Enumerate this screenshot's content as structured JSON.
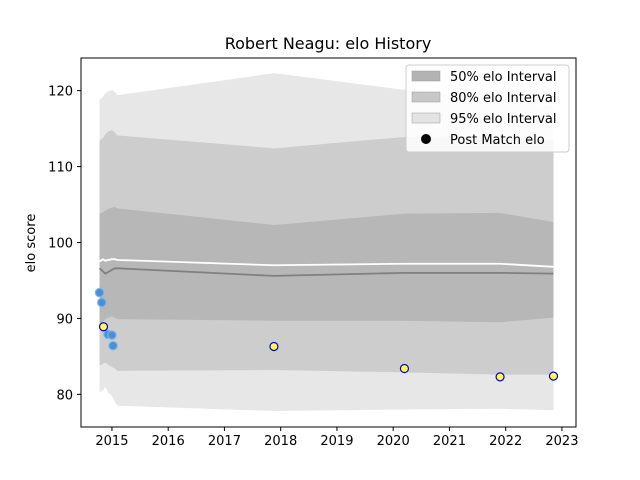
{
  "chart_data": {
    "type": "line",
    "title": "Robert Neagu: elo History",
    "xlabel": "",
    "ylabel": "elo score",
    "xlim": [
      2014.45,
      2023.25
    ],
    "ylim": [
      75.7,
      124.3
    ],
    "xticks": [
      2015,
      2016,
      2017,
      2018,
      2019,
      2020,
      2021,
      2022,
      2023
    ],
    "yticks": [
      80,
      90,
      100,
      110,
      120
    ],
    "grid": false,
    "legend_position": "top-right",
    "legend": [
      {
        "label": "50% elo Interval",
        "color": "#b3b3b3",
        "kind": "band"
      },
      {
        "label": "80% elo Interval",
        "color": "#c8c8c8",
        "kind": "band"
      },
      {
        "label": "95% elo Interval",
        "color": "#e3e3e3",
        "kind": "band"
      },
      {
        "label": "Post Match elo",
        "color": "#000000",
        "kind": "marker"
      }
    ],
    "x": [
      2014.78,
      2014.84,
      2014.88,
      2014.93,
      2015.0,
      2015.05,
      2015.1,
      2017.88,
      2020.2,
      2021.9,
      2022.85
    ],
    "bands": {
      "p95": {
        "lower": [
          80.3,
          80.5,
          81.0,
          80.3,
          79.8,
          79.0,
          78.5,
          77.8,
          78.0,
          78.1,
          77.9
        ],
        "upper": [
          118.8,
          119.2,
          119.6,
          119.9,
          120.1,
          119.8,
          119.4,
          122.3,
          120.1,
          119.0,
          117.9
        ]
      },
      "p80": {
        "lower": [
          83.8,
          84.0,
          84.2,
          83.9,
          83.6,
          83.4,
          83.1,
          83.2,
          82.9,
          82.6,
          82.6
        ],
        "upper": [
          113.4,
          113.8,
          114.2,
          114.6,
          114.8,
          114.5,
          114.1,
          112.4,
          113.9,
          114.0,
          113.4
        ]
      },
      "p50": {
        "lower": [
          89.2,
          89.6,
          89.9,
          90.1,
          90.3,
          90.1,
          89.9,
          89.7,
          89.7,
          89.5,
          90.1
        ],
        "upper": [
          103.8,
          104.0,
          104.2,
          104.4,
          104.6,
          104.7,
          104.5,
          102.3,
          103.8,
          103.9,
          102.7
        ]
      }
    },
    "median_line": {
      "color": "#808080",
      "values": [
        96.6,
        96.2,
        95.9,
        96.1,
        96.4,
        96.6,
        96.6,
        95.6,
        96.0,
        96.0,
        95.9
      ]
    },
    "mean_line": {
      "color": "#ffffff",
      "values": [
        97.5,
        97.8,
        97.6,
        97.7,
        97.8,
        97.8,
        97.7,
        97.0,
        97.2,
        97.2,
        96.8
      ]
    },
    "pre_match_points": {
      "color": "#4a90d9",
      "x": [
        2014.78,
        2014.82,
        2014.93,
        2015.0,
        2015.02
      ],
      "y": [
        93.4,
        92.1,
        87.9,
        87.8,
        86.4
      ]
    },
    "post_match_points": {
      "fill": "#ffff44",
      "edge": "#0000cc",
      "x": [
        2014.85,
        2017.88,
        2020.2,
        2021.9,
        2022.85
      ],
      "y": [
        88.9,
        86.3,
        83.4,
        82.3,
        82.4
      ]
    }
  }
}
